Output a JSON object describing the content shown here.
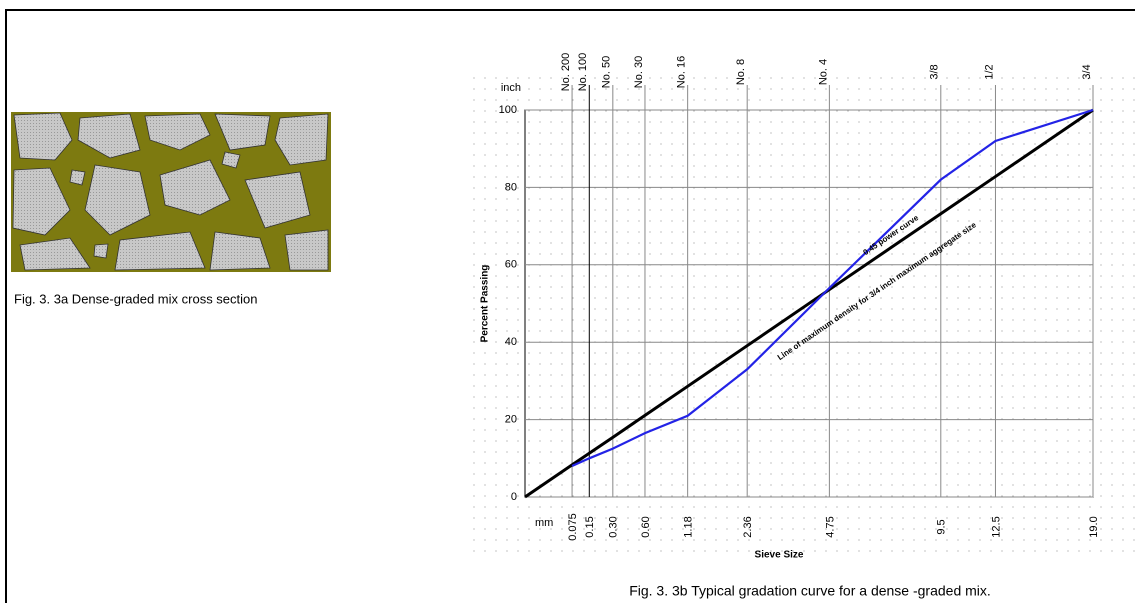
{
  "left_figure": {
    "caption": "Fig. 3. 3a Dense-graded mix cross section"
  },
  "chart_data": {
    "type": "line",
    "caption": "Fig. 3. 3b Typical gradation curve for a dense -graded mix.",
    "x_label": "Sieve Size",
    "y_label": "Percent Passing",
    "x_unit_label": "mm",
    "top_unit_label": "inch",
    "x_scale": "power",
    "x_exponent": 0.45,
    "xlim": [
      0,
      19
    ],
    "ylim": [
      0,
      100
    ],
    "yticks": [
      0,
      20,
      40,
      60,
      80,
      100
    ],
    "xticks": [
      0.075,
      0.15,
      {
        "value": 0.3,
        "label": "0.30"
      },
      {
        "value": 0.6,
        "label": "0.60"
      },
      1.18,
      2.36,
      4.75,
      9.5,
      12.5,
      {
        "value": 19,
        "label": "19.0"
      }
    ],
    "top_ticks": [
      "No. 200",
      "No. 100",
      "No. 50",
      "No. 30",
      "No. 16",
      "No. 8",
      "No. 4",
      "3/8",
      "1/2",
      "3/4"
    ],
    "grid": true,
    "series": [
      {
        "name": "Line of maximum density for 3/4 inch maximum aggregate size",
        "color": "#000000",
        "x": [
          0,
          0.075,
          0.15,
          0.3,
          0.6,
          1.18,
          2.36,
          4.75,
          9.5,
          12.5,
          19
        ],
        "values": [
          0,
          8.3,
          11.3,
          15.4,
          21.1,
          28.6,
          39.1,
          53.6,
          73.2,
          82.8,
          100
        ]
      },
      {
        "name": "0.45 power curve",
        "color": "#2323e6",
        "x": [
          0.075,
          0.15,
          0.3,
          0.6,
          1.18,
          2.36,
          4.75,
          9.5,
          12.5,
          19
        ],
        "values": [
          8,
          10,
          12.5,
          16.5,
          21,
          33,
          54,
          82,
          92,
          100
        ]
      }
    ]
  }
}
